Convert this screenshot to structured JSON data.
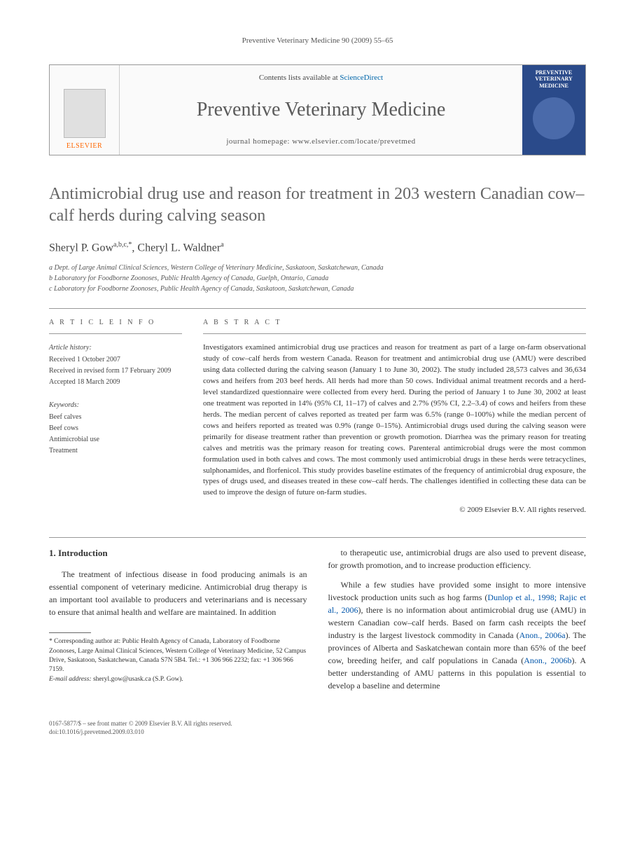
{
  "running_header": "Preventive Veterinary Medicine 90 (2009) 55–65",
  "banner": {
    "publisher": "ELSEVIER",
    "contents_text": "Contents lists available at",
    "contents_link": "ScienceDirect",
    "journal_name": "Preventive Veterinary Medicine",
    "homepage_label": "journal homepage: www.elsevier.com/locate/prevetmed",
    "cover_title": "PREVENTIVE VETERINARY MEDICINE"
  },
  "article": {
    "title": "Antimicrobial drug use and reason for treatment in 203 western Canadian cow–calf herds during calving season",
    "authors_html": "Sheryl P. Gow",
    "author1_sup": "a,b,c,*",
    "author_sep": ", ",
    "author2": "Cheryl L. Waldner",
    "author2_sup": "a",
    "affiliations": [
      "a Dept. of Large Animal Clinical Sciences, Western College of Veterinary Medicine, Saskatoon, Saskatchewan, Canada",
      "b Laboratory for Foodborne Zoonoses, Public Health Agency of Canada, Guelph, Ontario, Canada",
      "c Laboratory for Foodborne Zoonoses, Public Health Agency of Canada, Saskatoon, Saskatchewan, Canada"
    ]
  },
  "info": {
    "label": "A R T I C L E   I N F O",
    "history_heading": "Article history:",
    "history": [
      "Received 1 October 2007",
      "Received in revised form 17 February 2009",
      "Accepted 18 March 2009"
    ],
    "keywords_heading": "Keywords:",
    "keywords": [
      "Beef calves",
      "Beef cows",
      "Antimicrobial use",
      "Treatment"
    ]
  },
  "abstract": {
    "label": "A B S T R A C T",
    "text": "Investigators examined antimicrobial drug use practices and reason for treatment as part of a large on-farm observational study of cow–calf herds from western Canada. Reason for treatment and antimicrobial drug use (AMU) were described using data collected during the calving season (January 1 to June 30, 2002). The study included 28,573 calves and 36,634 cows and heifers from 203 beef herds. All herds had more than 50 cows. Individual animal treatment records and a herd-level standardized questionnaire were collected from every herd. During the period of January 1 to June 30, 2002 at least one treatment was reported in 14% (95% CI, 11–17) of calves and 2.7% (95% CI, 2.2–3.4) of cows and heifers from these herds. The median percent of calves reported as treated per farm was 6.5% (range 0–100%) while the median percent of cows and heifers reported as treated was 0.9% (range 0–15%). Antimicrobial drugs used during the calving season were primarily for disease treatment rather than prevention or growth promotion. Diarrhea was the primary reason for treating calves and metritis was the primary reason for treating cows. Parenteral antimicrobial drugs were the most common formulation used in both calves and cows. The most commonly used antimicrobial drugs in these herds were tetracyclines, sulphonamides, and florfenicol. This study provides baseline estimates of the frequency of antimicrobial drug exposure, the types of drugs used, and diseases treated in these cow–calf herds. The challenges identified in collecting these data can be used to improve the design of future on-farm studies.",
    "copyright": "© 2009 Elsevier B.V. All rights reserved."
  },
  "body": {
    "section_heading": "1. Introduction",
    "col1_p1": "The treatment of infectious disease in food producing animals is an essential component of veterinary medicine. Antimicrobial drug therapy is an important tool available to producers and veterinarians and is necessary to ensure that animal health and welfare are maintained. In addition",
    "col2_p1": "to therapeutic use, antimicrobial drugs are also used to prevent disease, for growth promotion, and to increase production efficiency.",
    "col2_p2_a": "While a few studies have provided some insight to more intensive livestock production units such as hog farms (",
    "col2_p2_cite1": "Dunlop et al., 1998; Rajic et al., 2006",
    "col2_p2_b": "), there is no information about antimicrobial drug use (AMU) in western Canadian cow–calf herds. Based on farm cash receipts the beef industry is the largest livestock commodity in Canada (",
    "col2_p2_cite2": "Anon., 2006a",
    "col2_p2_c": "). The provinces of Alberta and Saskatchewan contain more than 65% of the beef cow, breeding heifer, and calf populations in Canada (",
    "col2_p2_cite3": "Anon., 2006b",
    "col2_p2_d": "). A better understanding of AMU patterns in this population is essential to develop a baseline and determine"
  },
  "footnote": {
    "corr_label": "* Corresponding author at:",
    "corr_text": " Public Health Agency of Canada, Laboratory of Foodborne Zoonoses, Large Animal Clinical Sciences, Western College of Veterinary Medicine, 52 Campus Drive, Saskatoon, Saskatchewan, Canada S7N 5B4. Tel.: +1 306 966 2232; fax: +1 306 966 7159.",
    "email_label": "E-mail address:",
    "email": " sheryl.gow@usask.ca",
    "email_who": " (S.P. Gow)."
  },
  "footer": {
    "line1": "0167-5877/$ – see front matter © 2009 Elsevier B.V. All rights reserved.",
    "line2": "doi:10.1016/j.prevetmed.2009.03.010"
  },
  "colors": {
    "link": "#0055aa",
    "publisher_orange": "#ff6600",
    "title_gray": "#666666",
    "cover_blue": "#2a4a8a"
  }
}
